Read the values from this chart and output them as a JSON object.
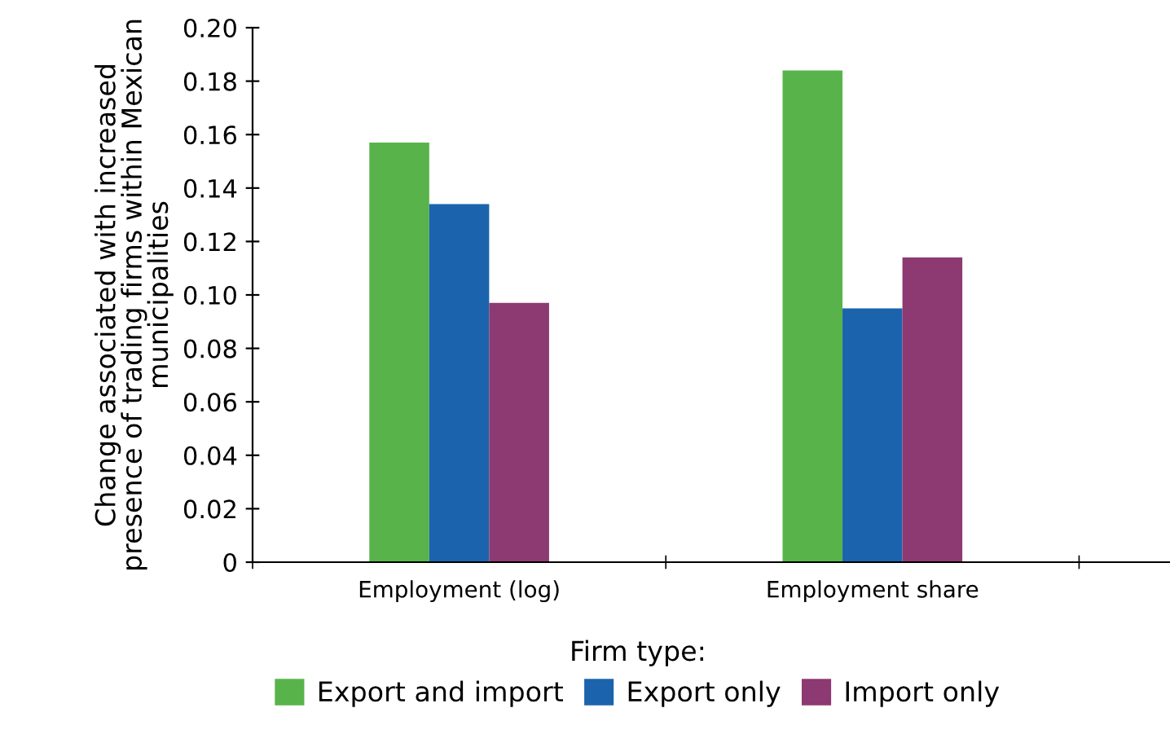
{
  "chart_data": {
    "type": "bar",
    "ylabel": "Change associated with increased presence of trading firms within Mexican municipalities",
    "legend_title": "Firm type:",
    "categories": [
      "Employment (log)",
      "Employment share"
    ],
    "series": [
      {
        "name": "Export and import",
        "color": "#58b44a",
        "values": [
          0.157,
          0.184
        ]
      },
      {
        "name": "Export only",
        "color": "#1b64ad",
        "values": [
          0.134,
          0.095
        ]
      },
      {
        "name": "Import only",
        "color": "#8c3a71",
        "values": [
          0.097,
          0.114
        ]
      }
    ],
    "ylim": [
      0,
      0.2
    ],
    "yticks": [
      0,
      0.02,
      0.04,
      0.06,
      {
        "value": 0.08,
        "label": "0.08"
      },
      {
        "value": 0.1,
        "label": "0.10"
      },
      0.12,
      0.14,
      0.16,
      0.18,
      {
        "value": 0.2,
        "label": "0.20"
      }
    ],
    "grid": false,
    "legend": "bottom"
  }
}
